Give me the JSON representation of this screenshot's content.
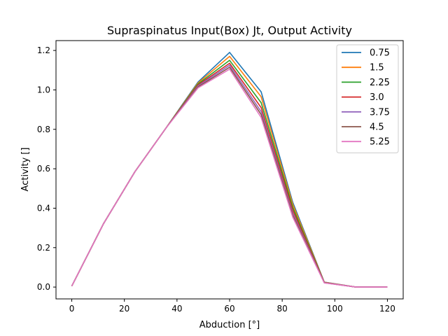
{
  "chart_data": {
    "type": "line",
    "title": "Supraspinatus Input(Box) Jt, Output Activity",
    "xlabel": "Abduction [°]",
    "ylabel": "Activity []",
    "xlim": [
      -6,
      126
    ],
    "ylim": [
      -0.06,
      1.25
    ],
    "xticks": [
      0,
      20,
      40,
      60,
      80,
      100,
      120
    ],
    "yticks": [
      0.0,
      0.2,
      0.4,
      0.6,
      0.8,
      1.0,
      1.2
    ],
    "xtick_labels": [
      "0",
      "20",
      "40",
      "60",
      "80",
      "100",
      "120"
    ],
    "ytick_labels": [
      "0.0",
      "0.2",
      "0.4",
      "0.6",
      "0.8",
      "1.0",
      "1.2"
    ],
    "grid": false,
    "legend_position": "top-right",
    "x": [
      0,
      12,
      24,
      36,
      48,
      60,
      72,
      84,
      96,
      108,
      120
    ],
    "series": [
      {
        "name": "0.75",
        "color": "#1f77b4",
        "values": [
          0.005,
          0.32,
          0.585,
          0.81,
          1.04,
          1.19,
          0.99,
          0.43,
          0.025,
          0.0,
          0.0
        ]
      },
      {
        "name": "1.5",
        "color": "#ff7f0e",
        "values": [
          0.005,
          0.32,
          0.585,
          0.81,
          1.035,
          1.17,
          0.965,
          0.42,
          0.024,
          0.0,
          0.0
        ]
      },
      {
        "name": "2.25",
        "color": "#2ca02c",
        "values": [
          0.005,
          0.32,
          0.585,
          0.81,
          1.03,
          1.15,
          0.935,
          0.405,
          0.023,
          0.0,
          0.0
        ]
      },
      {
        "name": "3.0",
        "color": "#d62728",
        "values": [
          0.005,
          0.32,
          0.585,
          0.81,
          1.025,
          1.135,
          0.91,
          0.39,
          0.023,
          0.0,
          0.0
        ]
      },
      {
        "name": "3.75",
        "color": "#9467bd",
        "values": [
          0.005,
          0.32,
          0.585,
          0.81,
          1.02,
          1.125,
          0.89,
          0.375,
          0.022,
          0.0,
          0.0
        ]
      },
      {
        "name": "4.5",
        "color": "#8c564b",
        "values": [
          0.005,
          0.32,
          0.585,
          0.81,
          1.015,
          1.115,
          0.875,
          0.365,
          0.022,
          0.0,
          0.0
        ]
      },
      {
        "name": "5.25",
        "color": "#e377c2",
        "values": [
          0.005,
          0.32,
          0.585,
          0.81,
          1.01,
          1.105,
          0.86,
          0.355,
          0.021,
          0.0,
          0.0
        ]
      }
    ]
  }
}
